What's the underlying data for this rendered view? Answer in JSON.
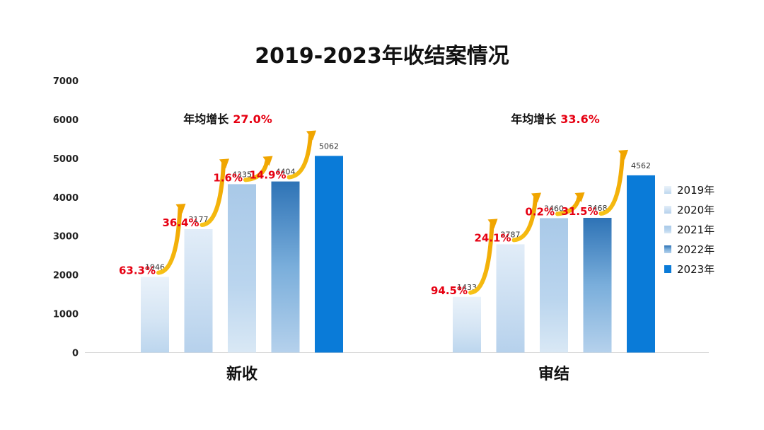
{
  "chart_data": {
    "type": "bar",
    "title": "2019-2023年收结案情况",
    "ylim": [
      0,
      7000
    ],
    "yticks": [
      "0",
      "1000",
      "2000",
      "3000",
      "4000",
      "5000",
      "6000",
      "7000"
    ],
    "categories": [
      "新收",
      "审结"
    ],
    "series": [
      {
        "name": "2019年",
        "values": [
          1946,
          1433
        ]
      },
      {
        "name": "2020年",
        "values": [
          3177,
          2787
        ]
      },
      {
        "name": "2021年",
        "values": [
          4335,
          3460
        ]
      },
      {
        "name": "2022年",
        "values": [
          4404,
          3468
        ]
      },
      {
        "name": "2023年",
        "values": [
          5062,
          4562
        ]
      }
    ],
    "growth_annotations": [
      [
        "63.3%",
        "36.4%",
        "1.6%",
        "14.9%"
      ],
      [
        "94.5%",
        "24.1%",
        "0.2%",
        "31.5%"
      ]
    ],
    "average_growth": {
      "label": "年均增长",
      "values": [
        "27.0%",
        "33.6%"
      ]
    },
    "legend_position": "right",
    "grid": false
  },
  "colors": {
    "growth_text": "#e60012",
    "arrow": "#f5b800",
    "series_2023": "#0a7bd8"
  }
}
